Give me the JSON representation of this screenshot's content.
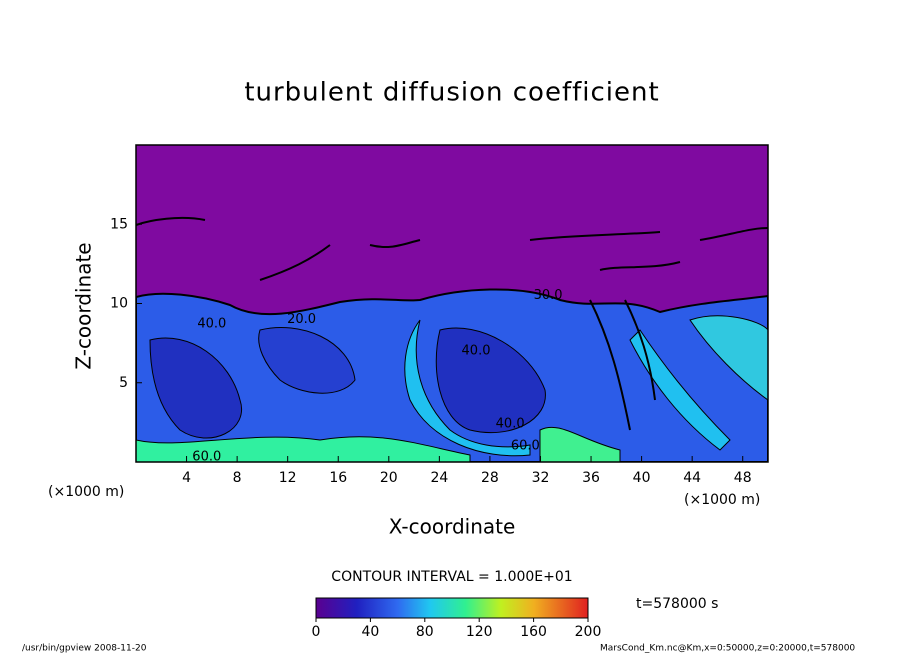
{
  "chart_data": {
    "type": "contour",
    "title": "turbulent diffusion coefficient",
    "x_label": "X-coordinate",
    "y_label": "Z-coordinate",
    "x_unit": "(×1000 m)",
    "xlim": [
      0,
      50
    ],
    "ylim": [
      0,
      20
    ],
    "xticks": [
      4,
      8,
      12,
      16,
      20,
      24,
      28,
      32,
      36,
      40,
      44,
      48
    ],
    "yticks": [
      5,
      10,
      15
    ],
    "contour_labels": [
      {
        "value": 40,
        "label": "40.0",
        "x": 26.9,
        "z": 7.0
      },
      {
        "value": 20,
        "label": "20.0",
        "x": 13.1,
        "z": 9.0
      },
      {
        "value": 40,
        "label": "40.0",
        "x": 6.0,
        "z": 8.7
      },
      {
        "value": 40,
        "label": "40.0",
        "x": 29.6,
        "z": 2.4
      },
      {
        "value": 60,
        "label": "60.0",
        "x": 30.8,
        "z": 1.0
      },
      {
        "value": 60,
        "label": "60.0",
        "x": 5.6,
        "z": 0.3
      },
      {
        "value": 30,
        "label": "30.0",
        "x": 32.6,
        "z": 10.5
      }
    ],
    "contour_interval": "CONTOUR INTERVAL = 1.000E+01",
    "clim": [
      0,
      200
    ],
    "cticks": [
      0,
      40,
      80,
      120,
      160,
      200
    ],
    "time_label": "t=578000 s",
    "footer_left": "/usr/bin/gpview   2008-11-20",
    "footer_right": "MarsCond_Km.nc@Km,x=0:50000,z=0:20000,t=578000"
  }
}
